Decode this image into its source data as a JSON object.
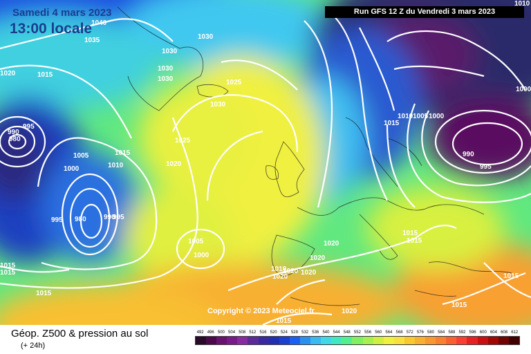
{
  "header": {
    "date": "Samedi 4 mars 2023",
    "local_time": "13:00 locale",
    "run_info": "Run GFS 12 Z du Vendredi 3 mars 2023"
  },
  "copyright": "Copyright © 2023 Meteociel.fr",
  "footer": {
    "title": "Géop. Z500 & pression au sol",
    "subtitle": "(+ 24h)"
  },
  "scale": {
    "values": [
      "492",
      "496",
      "500",
      "504",
      "508",
      "512",
      "516",
      "520",
      "524",
      "528",
      "532",
      "536",
      "540",
      "544",
      "548",
      "552",
      "556",
      "560",
      "564",
      "568",
      "572",
      "576",
      "580",
      "584",
      "588",
      "592",
      "596",
      "600",
      "604",
      "608",
      "612"
    ],
    "colors": [
      "#2a0a2a",
      "#4a0a4a",
      "#6a1070",
      "#7a1a8a",
      "#8a2aa0",
      "#5a2a9a",
      "#3a2aa0",
      "#2030b0",
      "#1a40d0",
      "#1a60f0",
      "#2a90f0",
      "#3ab8f0",
      "#40d8e8",
      "#40e8c0",
      "#50f090",
      "#80f060",
      "#a8f050",
      "#d0f040",
      "#f0f040",
      "#f8e040",
      "#f8c830",
      "#f8b030",
      "#f89830",
      "#f88030",
      "#f86030",
      "#f84030",
      "#e82020",
      "#c81010",
      "#a00808",
      "#700404",
      "#400000"
    ]
  },
  "isobars": [
    {
      "label": "1040",
      "kind": "light"
    },
    {
      "label": "1035",
      "kind": "light"
    },
    {
      "label": "1030",
      "kind": "light"
    },
    {
      "label": "1030",
      "kind": "light"
    },
    {
      "label": "1030",
      "kind": "light"
    },
    {
      "label": "1030",
      "kind": "light"
    },
    {
      "label": "1030",
      "kind": "light"
    },
    {
      "label": "1020",
      "kind": "light"
    },
    {
      "label": "1015",
      "kind": "light"
    },
    {
      "label": "1025",
      "kind": "light"
    },
    {
      "label": "995",
      "kind": "light"
    },
    {
      "label": "990",
      "kind": "light"
    },
    {
      "label": "980",
      "kind": "light"
    },
    {
      "label": "1005",
      "kind": "light"
    },
    {
      "label": "1015",
      "kind": "light"
    },
    {
      "label": "1000",
      "kind": "light"
    },
    {
      "label": "1010",
      "kind": "light"
    },
    {
      "label": "1025",
      "kind": "light"
    },
    {
      "label": "1020",
      "kind": "light"
    },
    {
      "label": "995",
      "kind": "light"
    },
    {
      "label": "980",
      "kind": "light"
    },
    {
      "label": "990",
      "kind": "light"
    },
    {
      "label": "995",
      "kind": "light"
    },
    {
      "label": "1005",
      "kind": "light"
    },
    {
      "label": "1000",
      "kind": "light"
    },
    {
      "label": "1015",
      "kind": "light"
    },
    {
      "label": "1015",
      "kind": "light"
    },
    {
      "label": "1015",
      "kind": "light"
    },
    {
      "label": "1010",
      "kind": "light"
    },
    {
      "label": "1020",
      "kind": "light"
    },
    {
      "label": "1020",
      "kind": "light"
    },
    {
      "label": "1020",
      "kind": "light"
    },
    {
      "label": "1020",
      "kind": "light"
    },
    {
      "label": "1020",
      "kind": "light"
    },
    {
      "label": "1020",
      "kind": "light"
    },
    {
      "label": "1015",
      "kind": "light"
    },
    {
      "label": "1015",
      "kind": "light"
    },
    {
      "label": "1015",
      "kind": "light"
    },
    {
      "label": "1015",
      "kind": "light"
    },
    {
      "label": "1015",
      "kind": "light"
    },
    {
      "label": "1010",
      "kind": "light"
    },
    {
      "label": "1005",
      "kind": "light"
    },
    {
      "label": "1000",
      "kind": "light"
    },
    {
      "label": "990",
      "kind": "light"
    },
    {
      "label": "995",
      "kind": "light"
    },
    {
      "label": "1000",
      "kind": "light"
    },
    {
      "label": "1010",
      "kind": "light"
    },
    {
      "label": "1015",
      "kind": "light"
    }
  ]
}
